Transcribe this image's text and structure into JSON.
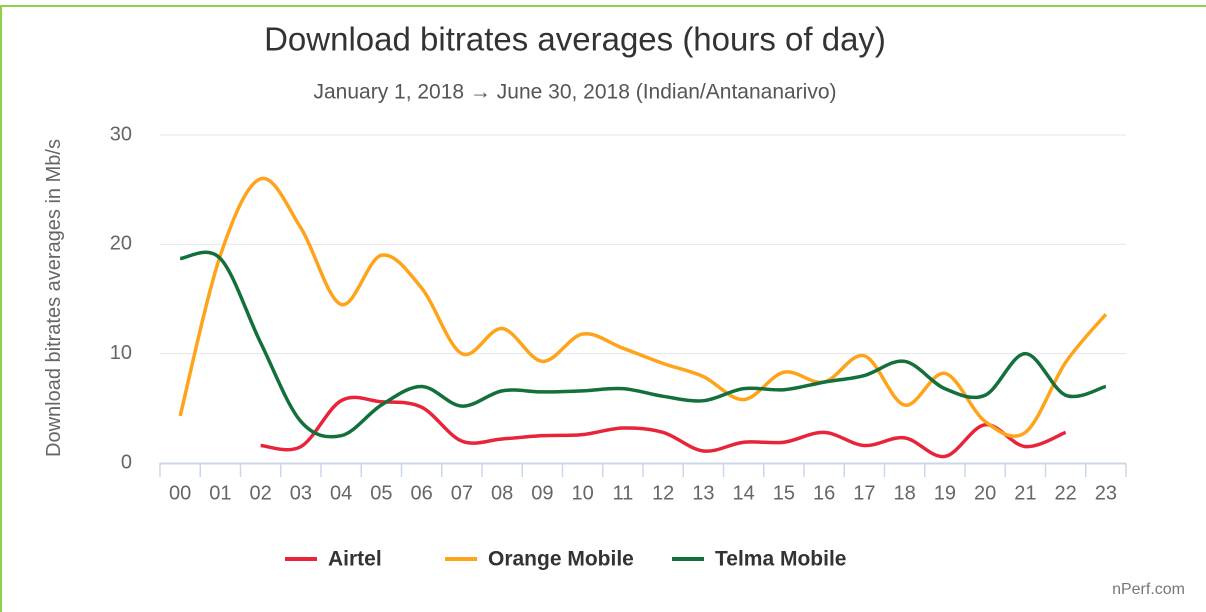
{
  "chart_data": {
    "type": "line",
    "title": "Download bitrates averages (hours of day)",
    "subtitle": "January 1, 2018 → June 30, 2018 (Indian/Antananarivo)",
    "y_label": "Download bitrates averages in Mb/s",
    "credits": "nPerf.com",
    "categories": [
      "00",
      "01",
      "02",
      "03",
      "04",
      "05",
      "06",
      "07",
      "08",
      "09",
      "10",
      "11",
      "12",
      "13",
      "14",
      "15",
      "16",
      "17",
      "18",
      "19",
      "20",
      "21",
      "22",
      "23"
    ],
    "ylim": [
      0,
      30
    ],
    "yticks": [
      0,
      10,
      20,
      30
    ],
    "grid": true,
    "legend": "bottom",
    "series": [
      {
        "name": "Airtel",
        "color": "#e8243a",
        "values": [
          null,
          null,
          1.6,
          1.5,
          5.7,
          5.6,
          5.1,
          2.0,
          2.2,
          2.5,
          2.6,
          3.2,
          2.8,
          1.1,
          1.9,
          1.9,
          2.8,
          1.6,
          2.3,
          0.6,
          3.5,
          1.5,
          2.8,
          null
        ]
      },
      {
        "name": "Orange Mobile",
        "color": "#ffa31a",
        "values": [
          4.3,
          19,
          26,
          21.5,
          14.5,
          19,
          16,
          10,
          12.3,
          9.3,
          11.8,
          10.5,
          9.1,
          7.9,
          5.8,
          8.3,
          7.4,
          9.8,
          5.3,
          8.2,
          3.8,
          2.8,
          9.2,
          13.6
        ]
      },
      {
        "name": "Telma Mobile",
        "color": "#13703a",
        "values": [
          18.7,
          18.7,
          11,
          3.8,
          2.5,
          5.3,
          7.0,
          5.2,
          6.6,
          6.5,
          6.6,
          6.8,
          6.1,
          5.7,
          6.8,
          6.7,
          7.4,
          8.0,
          9.3,
          6.8,
          6.2,
          10.0,
          6.2,
          7.0
        ]
      }
    ]
  }
}
